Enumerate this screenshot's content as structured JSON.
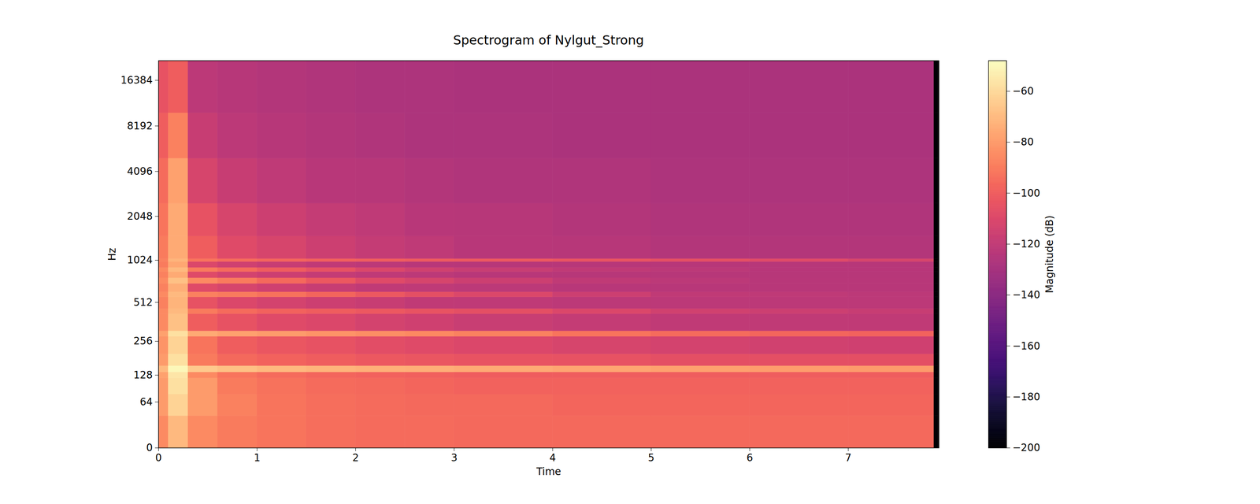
{
  "chart_data": {
    "type": "heatmap",
    "title": "Spectrogram of Nylgut_Strong",
    "x_label": "Time",
    "y_label": "Hz",
    "xlim": [
      0,
      7.92
    ],
    "xticks": [
      0,
      1,
      2,
      3,
      4,
      5,
      6,
      7
    ],
    "ylim": [
      0,
      22050
    ],
    "yticks": [
      0,
      64,
      128,
      256,
      512,
      1024,
      2048,
      4096,
      8192,
      16384
    ],
    "log": "y",
    "x_edges": [
      0,
      0.1,
      0.3,
      0.6,
      1,
      1.5,
      2,
      2.5,
      3,
      4,
      5,
      6,
      7,
      7.87,
      7.92
    ],
    "y_edges": [
      0,
      40,
      80,
      120,
      137,
      157,
      200,
      280,
      310,
      420,
      460,
      560,
      610,
      700,
      770,
      850,
      910,
      1000,
      1050,
      1500,
      2500,
      5000,
      10000,
      22050
    ],
    "values": [
      [
        -85,
        -70,
        -85,
        -90,
        -92,
        -94,
        -95,
        -95,
        -96,
        -96,
        -96,
        -96,
        -96,
        -200
      ],
      [
        -80,
        -62,
        -80,
        -88,
        -92,
        -94,
        -95,
        -96,
        -96,
        -97,
        -97,
        -97,
        -97,
        -200
      ],
      [
        -80,
        -58,
        -80,
        -90,
        -93,
        -95,
        -96,
        -97,
        -98,
        -98,
        -98,
        -98,
        -98,
        -200
      ],
      [
        -78,
        -56,
        -85,
        -92,
        -95,
        -97,
        -98,
        -99,
        -100,
        -100,
        -100,
        -100,
        -100,
        -200
      ],
      [
        -70,
        -50,
        -65,
        -68,
        -70,
        -72,
        -73,
        -74,
        -75,
        -77,
        -78,
        -79,
        -80,
        -200
      ],
      [
        -80,
        -58,
        -90,
        -96,
        -98,
        -100,
        -102,
        -103,
        -104,
        -105,
        -106,
        -106,
        -106,
        -200
      ],
      [
        -82,
        -62,
        -92,
        -100,
        -103,
        -105,
        -107,
        -108,
        -110,
        -112,
        -113,
        -114,
        -115,
        -200
      ],
      [
        -78,
        -58,
        -75,
        -78,
        -80,
        -82,
        -84,
        -86,
        -88,
        -92,
        -95,
        -97,
        -98,
        -200
      ],
      [
        -85,
        -68,
        -100,
        -105,
        -108,
        -110,
        -113,
        -115,
        -117,
        -119,
        -120,
        -120,
        -120,
        -200
      ],
      [
        -85,
        -70,
        -90,
        -95,
        -98,
        -100,
        -102,
        -104,
        -106,
        -110,
        -114,
        -116,
        -118,
        -200
      ],
      [
        -88,
        -72,
        -105,
        -110,
        -113,
        -116,
        -118,
        -120,
        -121,
        -122,
        -122,
        -122,
        -122,
        -200
      ],
      [
        -85,
        -70,
        -88,
        -90,
        -93,
        -97,
        -102,
        -106,
        -110,
        -116,
        -120,
        -121,
        -122,
        -200
      ],
      [
        -88,
        -74,
        -108,
        -112,
        -115,
        -118,
        -120,
        -121,
        -122,
        -123,
        -123,
        -123,
        -123,
        -200
      ],
      [
        -85,
        -68,
        -85,
        -90,
        -96,
        -102,
        -108,
        -112,
        -116,
        -120,
        -122,
        -123,
        -123,
        -200
      ],
      [
        -88,
        -75,
        -108,
        -113,
        -116,
        -119,
        -121,
        -122,
        -123,
        -124,
        -124,
        -124,
        -124,
        -200
      ],
      [
        -86,
        -70,
        -90,
        -95,
        -100,
        -105,
        -110,
        -114,
        -117,
        -120,
        -122,
        -123,
        -123,
        -200
      ],
      [
        -90,
        -76,
        -110,
        -115,
        -118,
        -120,
        -122,
        -123,
        -124,
        -124,
        -124,
        -124,
        -124,
        -200
      ],
      [
        -88,
        -72,
        -92,
        -95,
        -97,
        -99,
        -100,
        -101,
        -102,
        -104,
        -106,
        -108,
        -112,
        -200
      ],
      [
        -90,
        -75,
        -100,
        -108,
        -112,
        -116,
        -119,
        -121,
        -123,
        -124,
        -125,
        -125,
        -125,
        -200
      ],
      [
        -92,
        -75,
        -105,
        -112,
        -116,
        -119,
        -121,
        -123,
        -124,
        -125,
        -126,
        -126,
        -126,
        -200
      ],
      [
        -95,
        -78,
        -112,
        -118,
        -121,
        -123,
        -124,
        -125,
        -126,
        -126,
        -127,
        -127,
        -127,
        -200
      ],
      [
        -100,
        -88,
        -118,
        -122,
        -124,
        -125,
        -126,
        -127,
        -127,
        -128,
        -128,
        -128,
        -128,
        -200
      ],
      [
        -105,
        -100,
        -122,
        -124,
        -125,
        -126,
        -127,
        -127,
        -128,
        -128,
        -128,
        -128,
        -128,
        -200
      ]
    ],
    "colorbar": {
      "label": "Magnitude (dB)",
      "range": [
        -200,
        -48
      ],
      "ticks": [
        -200,
        -180,
        -160,
        -140,
        -120,
        -100,
        -80,
        -60
      ]
    }
  }
}
